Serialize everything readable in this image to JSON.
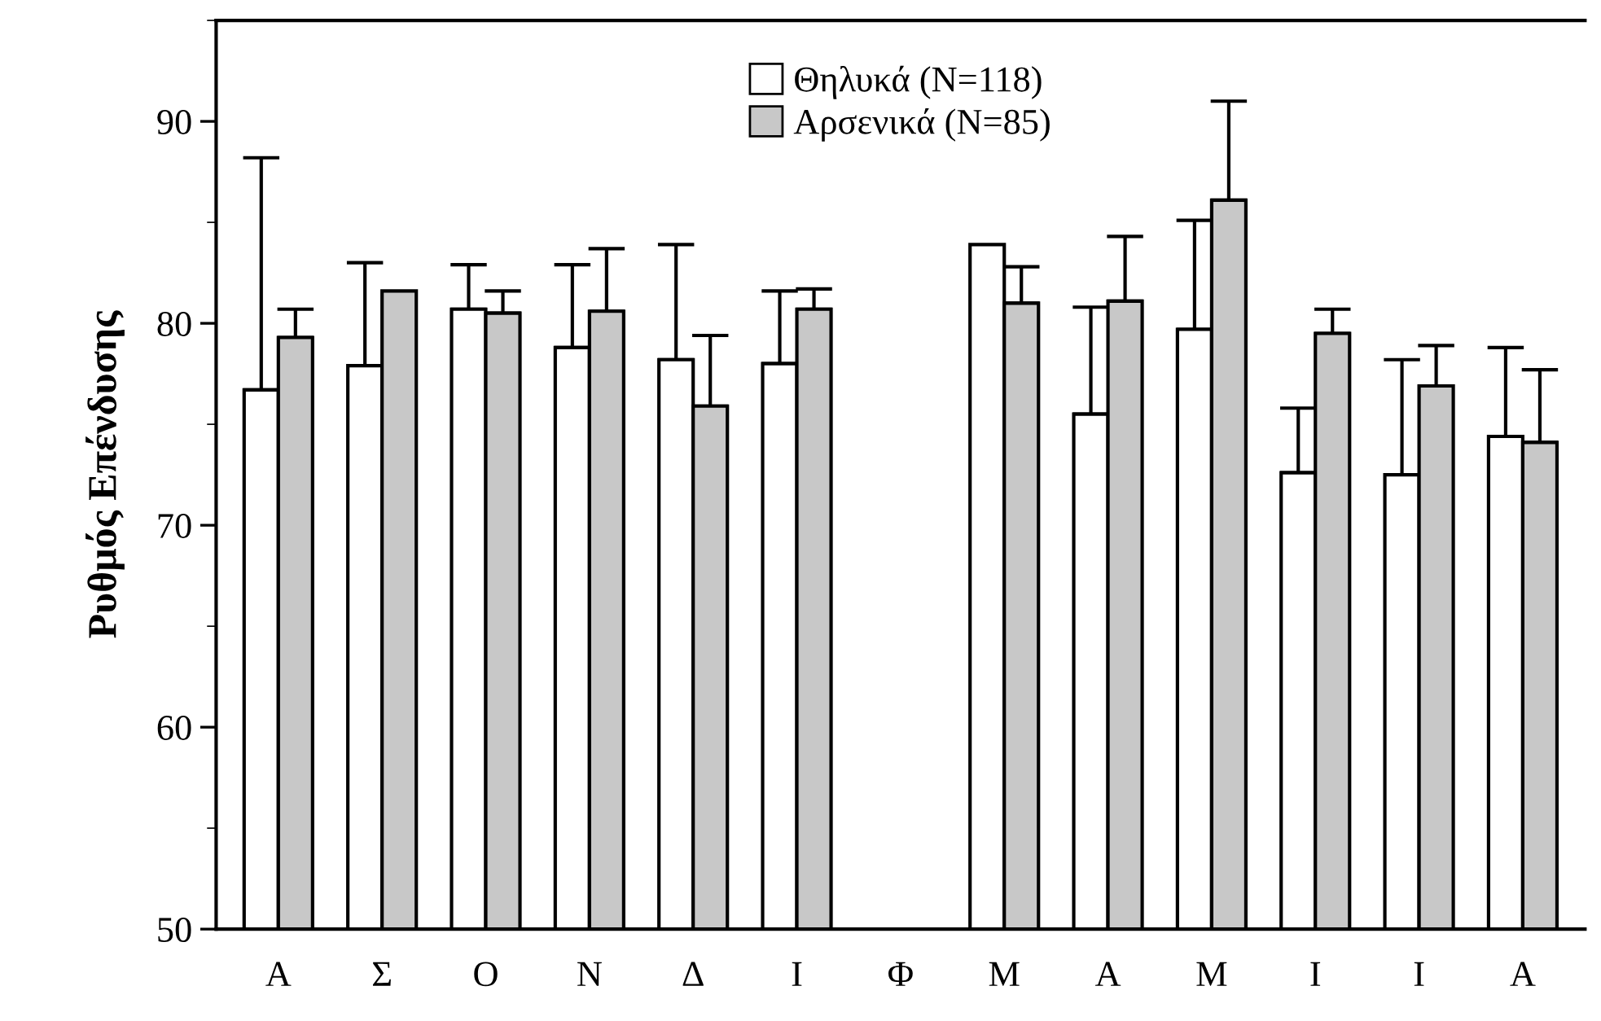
{
  "chart_data": {
    "type": "bar",
    "ylabel": "Ρυθμός Επένδυσης",
    "categories": [
      "Α",
      "Σ",
      "Ο",
      "Ν",
      "Δ",
      "Ι",
      "Φ",
      "Μ",
      "Α",
      "Μ",
      "Ι",
      "Ι",
      "Α"
    ],
    "series": [
      {
        "name": "Θηλυκά (N=118)",
        "color": "#ffffff",
        "values": [
          76.7,
          77.9,
          80.7,
          78.8,
          78.2,
          78.0,
          null,
          83.9,
          75.5,
          79.7,
          72.6,
          72.5,
          74.4
        ],
        "errors": [
          [
            76.7,
            88.2
          ],
          [
            77.9,
            83.0
          ],
          [
            80.7,
            82.9
          ],
          [
            78.8,
            82.9
          ],
          [
            78.2,
            83.9
          ],
          [
            78.0,
            81.6
          ],
          null,
          null,
          [
            75.5,
            80.8
          ],
          [
            79.7,
            85.1
          ],
          [
            72.6,
            75.8
          ],
          [
            72.5,
            78.2
          ],
          [
            74.4,
            78.8
          ]
        ]
      },
      {
        "name": "Αρσενικά (N=85)",
        "color": "#c8c8c8",
        "values": [
          79.3,
          81.6,
          80.5,
          80.6,
          75.9,
          80.7,
          null,
          81.0,
          81.1,
          86.1,
          79.5,
          76.9,
          74.1
        ],
        "errors": [
          [
            79.3,
            80.7
          ],
          null,
          [
            80.5,
            81.6
          ],
          [
            80.6,
            83.7
          ],
          [
            75.9,
            79.4
          ],
          [
            80.7,
            81.7
          ],
          null,
          [
            81.0,
            82.8
          ],
          [
            81.1,
            84.3
          ],
          [
            86.1,
            91.0
          ],
          [
            79.5,
            80.7
          ],
          [
            76.9,
            78.9
          ],
          [
            74.1,
            77.7
          ]
        ]
      }
    ],
    "ylim": [
      50,
      95
    ],
    "yticks": [
      50,
      60,
      70,
      80,
      90
    ],
    "grid": false,
    "legend": "top"
  }
}
